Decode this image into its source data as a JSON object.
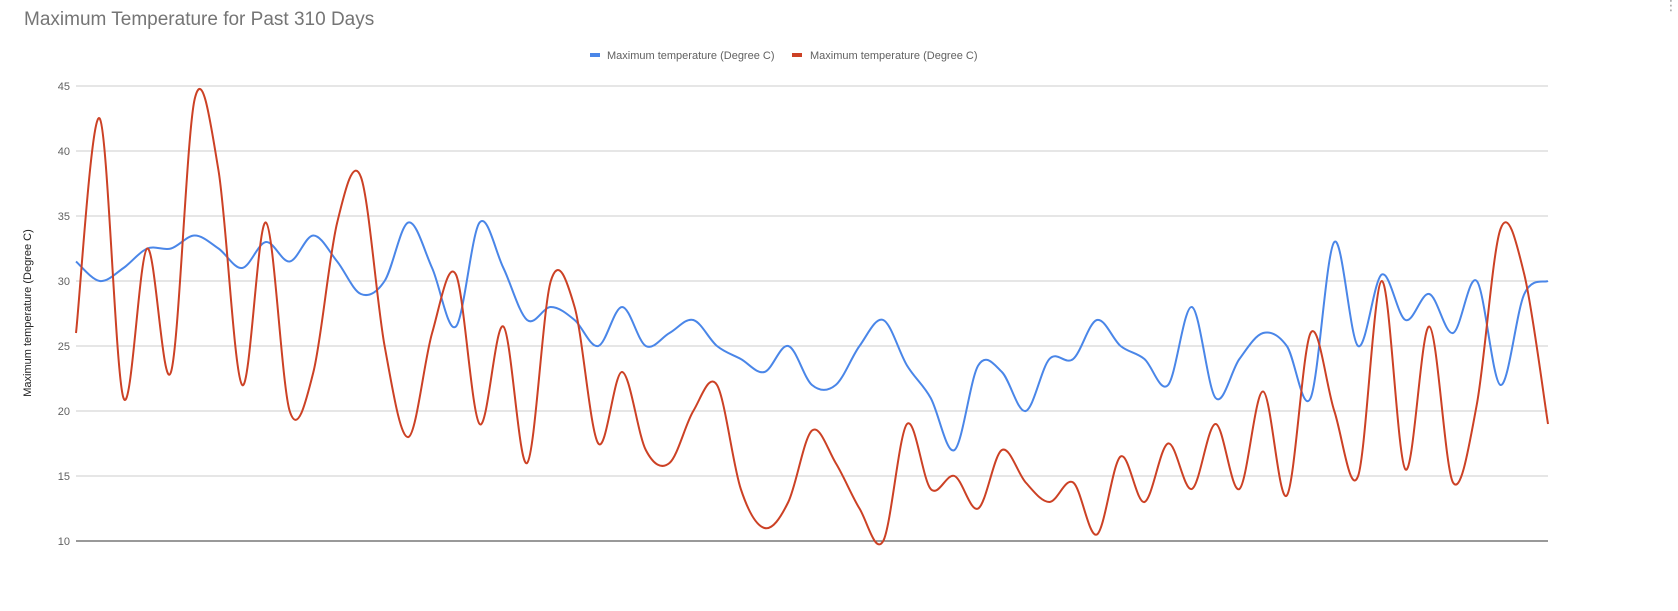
{
  "menu_icon": "more-vertical-icon",
  "chart_data": {
    "type": "line",
    "title": "Maximum Temperature for Past 310 Days",
    "ylabel": "Maximum temperature (Degree C)",
    "xlabel": "",
    "ylim": [
      10,
      45
    ],
    "yticks": [
      10,
      15,
      20,
      25,
      30,
      35,
      40,
      45
    ],
    "grid": true,
    "legend_position": "top-center",
    "smooth": true,
    "x": [
      0,
      5,
      10,
      15,
      20,
      25,
      30,
      35,
      40,
      45,
      50,
      55,
      60,
      65,
      70,
      75,
      80,
      85,
      90,
      95,
      100,
      105,
      110,
      115,
      120,
      125,
      130,
      135,
      140,
      145,
      150,
      155,
      160,
      165,
      170,
      175,
      180,
      185,
      190,
      195,
      200,
      205,
      210,
      215,
      220,
      225,
      230,
      235,
      240,
      245,
      250,
      255,
      260,
      265,
      270,
      275,
      280,
      285,
      290,
      295,
      300,
      305,
      310
    ],
    "series": [
      {
        "name": "Maximum temperature (Degree C)",
        "color": "#4a86e8",
        "values": [
          31.5,
          30.0,
          31.0,
          32.5,
          32.5,
          33.5,
          32.5,
          31.0,
          33.0,
          31.5,
          33.5,
          31.5,
          29.0,
          30.0,
          34.5,
          31.0,
          26.5,
          34.5,
          31.0,
          27.0,
          28.0,
          27.0,
          25.0,
          28.0,
          25.0,
          26.0,
          27.0,
          25.0,
          24.0,
          23.0,
          25.0,
          22.0,
          22.0,
          25.0,
          27.0,
          23.5,
          21.0,
          17.0,
          23.5,
          23.0,
          20.0,
          24.0,
          24.0,
          27.0,
          25.0,
          24.0,
          22.0,
          28.0,
          21.0,
          24.0,
          26.0,
          25.0,
          21.0,
          33.0,
          25.0,
          30.5,
          27.0,
          29.0,
          26.0,
          30.0,
          22.0,
          29.0,
          30.0
        ]
      },
      {
        "name": "Maximum temperature (Degree C)",
        "color": "#cc4125",
        "values": [
          26.0,
          42.5,
          21.0,
          32.5,
          23.0,
          44.0,
          38.5,
          22.0,
          34.5,
          20.0,
          23.0,
          34.5,
          38.0,
          25.0,
          18.0,
          26.0,
          30.5,
          19.0,
          26.5,
          16.0,
          30.0,
          28.0,
          17.5,
          23.0,
          17.0,
          16.0,
          20.0,
          22.0,
          14.0,
          11.0,
          13.0,
          18.5,
          16.0,
          12.5,
          10.0,
          19.0,
          14.0,
          15.0,
          12.5,
          17.0,
          14.5,
          13.0,
          14.5,
          10.5,
          16.5,
          13.0,
          17.5,
          14.0,
          19.0,
          14.0,
          21.5,
          13.5,
          26.0,
          20.0,
          15.0,
          30.0,
          15.5,
          26.5,
          14.5,
          20.5,
          34.0,
          30.5,
          19.0
        ]
      }
    ]
  }
}
